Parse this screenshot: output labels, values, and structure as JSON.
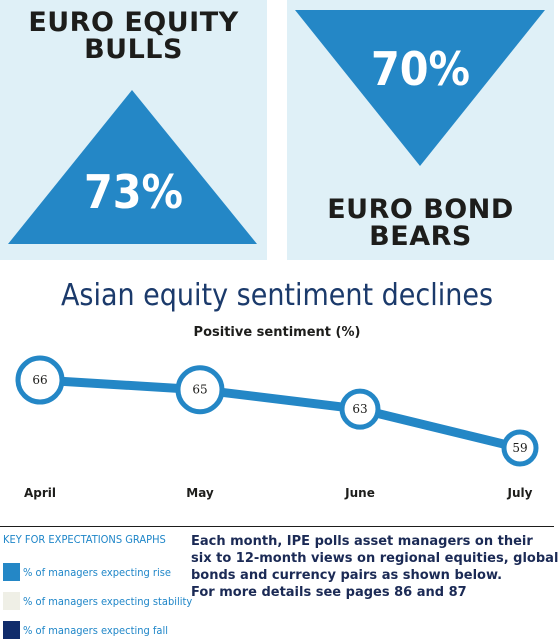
{
  "panels": {
    "left": {
      "title_line1": "EURO EQUITY",
      "title_line2": "BULLS",
      "value": "73%",
      "color": "#2487c6"
    },
    "right": {
      "value": "70%",
      "title_line1": "EURO BOND",
      "title_line2": "BEARS",
      "color": "#2487c6"
    }
  },
  "chart_title": "Asian equity sentiment declines",
  "chart_data": {
    "type": "line",
    "title": "Asian equity sentiment declines",
    "subtitle": "Positive sentiment (%)",
    "categories": [
      "April",
      "May",
      "June",
      "July"
    ],
    "series": [
      {
        "values": [
          66,
          65,
          63,
          59
        ]
      }
    ],
    "data_labels": [
      "66",
      "65",
      "63",
      "59"
    ],
    "ylim": [
      59,
      66
    ],
    "grid": false,
    "line_color": "#2487c6"
  },
  "key": {
    "title": "KEY FOR EXPECTATIONS GRAPHS",
    "items": [
      {
        "label": "% of managers expecting rise",
        "color": "#2487c6"
      },
      {
        "label": "% of managers expecting stability",
        "color": "#efefe6"
      },
      {
        "label": "% of managers expecting fall",
        "color": "#102c6b"
      }
    ]
  },
  "info": {
    "lines": [
      "Each month, IPE polls asset managers on their",
      "six to 12-month views on regional equities, global",
      "bonds and currency pairs as shown below.",
      "For more details see pages 86 and 87"
    ]
  }
}
